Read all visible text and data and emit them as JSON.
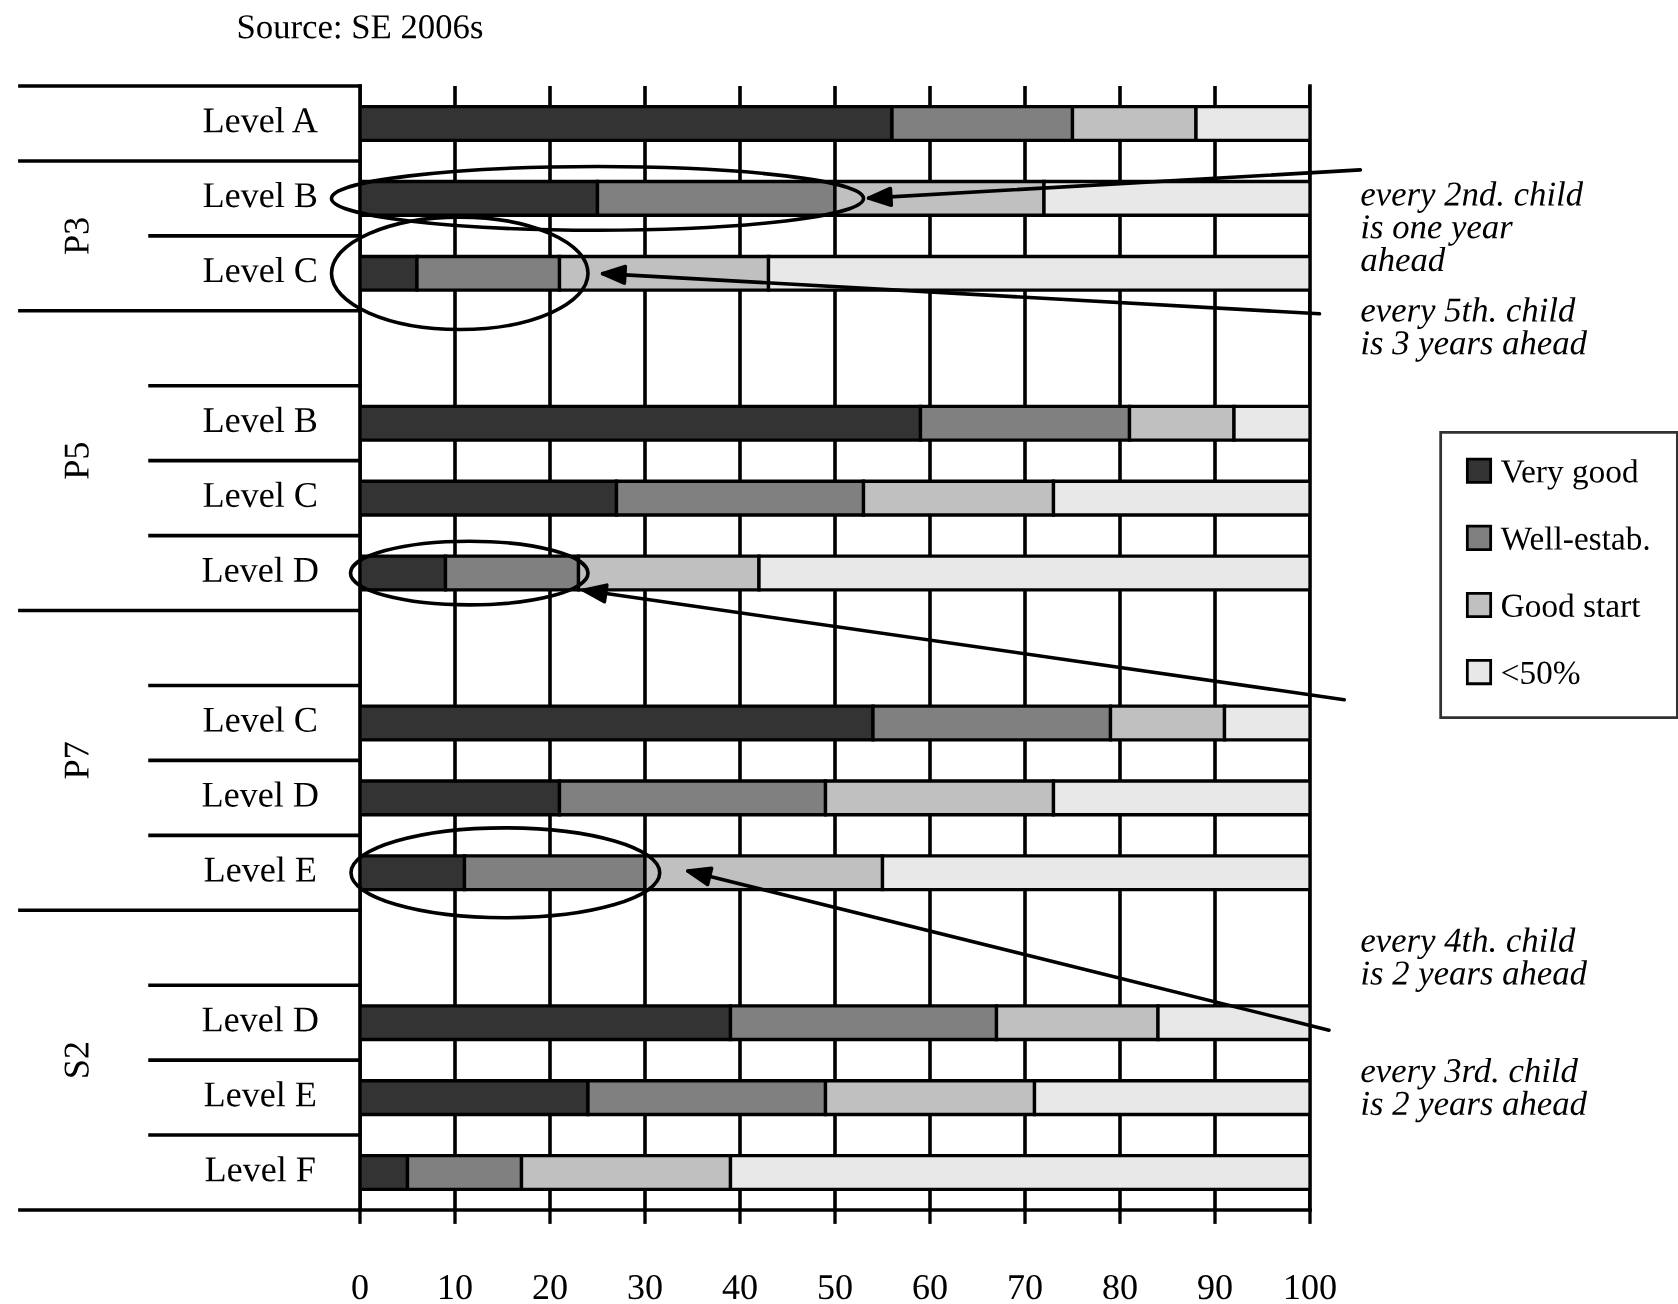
{
  "chart_data": {
    "type": "bar",
    "orientation": "horizontal",
    "stacked": true,
    "categories": [
      "Level A",
      "Level B",
      "Level C",
      null,
      "Level B",
      "Level C",
      "Level D",
      null,
      "Level C",
      "Level D",
      "Level E",
      null,
      "Level D",
      "Level E",
      "Level F"
    ],
    "series": [
      {
        "name": "Very good",
        "color": "#333333",
        "values": [
          56,
          25,
          6,
          null,
          59,
          27,
          9,
          null,
          54,
          21,
          11,
          null,
          39,
          24,
          5
        ]
      },
      {
        "name": "Well-estab.",
        "color": "#808080",
        "values": [
          19,
          25,
          15,
          null,
          22,
          26,
          14,
          null,
          25,
          28,
          19,
          null,
          28,
          25,
          12
        ]
      },
      {
        "name": "Good start",
        "color": "#c0c0c0",
        "values": [
          13,
          22,
          22,
          null,
          11,
          20,
          19,
          null,
          12,
          24,
          25,
          null,
          17,
          22,
          22
        ]
      },
      {
        "name": "<50%",
        "color": "#e8e8e8",
        "values": [
          12,
          28,
          57,
          null,
          8,
          27,
          58,
          null,
          9,
          27,
          45,
          null,
          16,
          29,
          61
        ]
      }
    ],
    "xlim": [
      0,
      100
    ],
    "xticks": [
      0,
      10,
      20,
      30,
      40,
      50,
      60,
      70,
      80,
      90,
      100
    ],
    "grid": "x",
    "legend": "right",
    "annotations": [
      "Source: SE 2006s",
      "P3",
      "P5",
      "P7",
      "S2",
      "every 2nd. child\nis one year\nahead",
      "every 5th. child\nis 3 years ahead",
      "every 4th. child\nis 2 years ahead",
      "every 3rd. child\nis 2 years ahead"
    ]
  }
}
